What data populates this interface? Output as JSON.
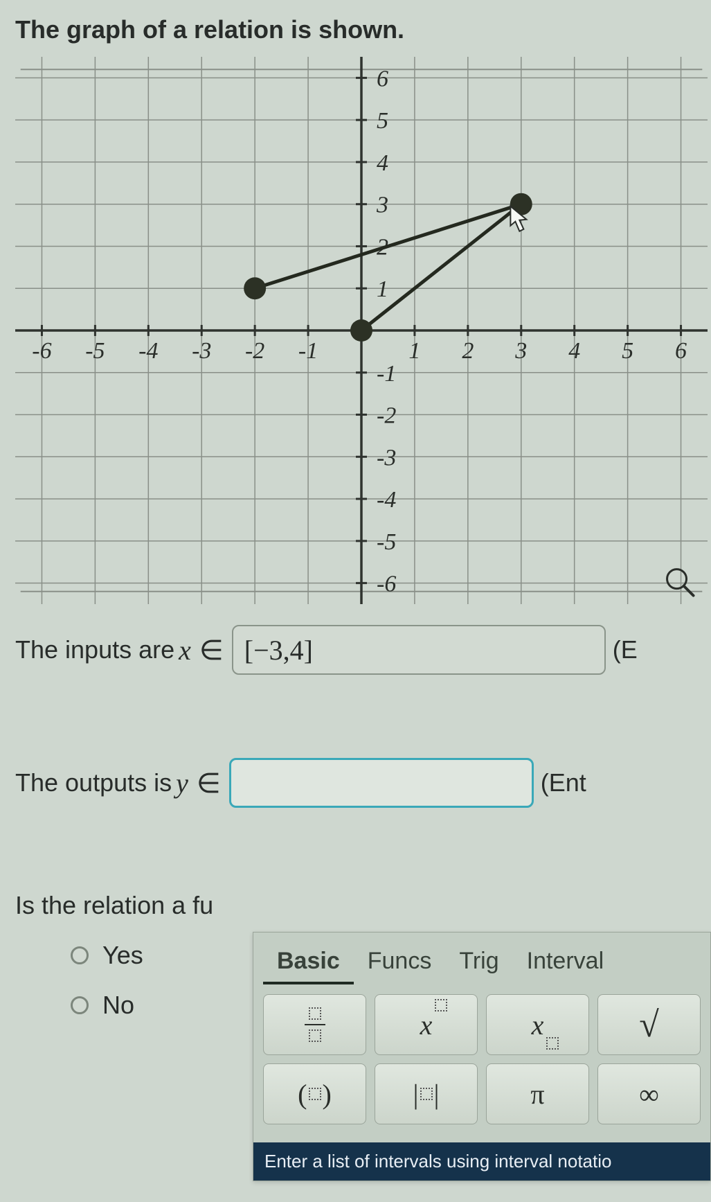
{
  "title": "The graph of a relation is shown.",
  "graph": {
    "type": "line-scatter",
    "xlim": [
      -6.5,
      6.5
    ],
    "ylim": [
      -6.5,
      6.5
    ],
    "xtick_labels": [
      "-6",
      "-5",
      "-4",
      "-3",
      "-2",
      "-1",
      "1",
      "2",
      "3",
      "4",
      "5",
      "6"
    ],
    "ytick_labels": [
      "6",
      "5",
      "4",
      "3",
      "2",
      "1",
      "-1",
      "-2",
      "-3",
      "-4",
      "-5",
      "-6"
    ],
    "tick_fontsize": 34,
    "tick_font": "italic serif",
    "grid_color": "#898f88",
    "axis_color": "#2f332f",
    "background_color": "#ced7cf",
    "line_color": "#24291f",
    "line_width": 5,
    "point_radius": 16,
    "point_fill": "#2c3125",
    "points": [
      {
        "x": -2,
        "y": 1
      },
      {
        "x": 0,
        "y": 0
      },
      {
        "x": 3,
        "y": 3
      }
    ],
    "segments": [
      {
        "from": [
          -2,
          1
        ],
        "to": [
          3,
          3
        ]
      },
      {
        "from": [
          0,
          0
        ],
        "to": [
          3,
          3
        ]
      }
    ],
    "cursor_at": [
      2.8,
      2.95
    ],
    "magnifier_at": [
      6,
      -6
    ]
  },
  "q1": {
    "prompt_pre": "The inputs are ",
    "var": "x",
    "elem": "∈",
    "value": "[−3,4]",
    "trailing": "(E"
  },
  "q2": {
    "prompt_pre": "The outputs is ",
    "var": "y",
    "elem": "∈",
    "value": "",
    "trailing": "(Ent"
  },
  "q3": {
    "prompt": "Is the relation a fu",
    "options": [
      "Yes",
      "No"
    ]
  },
  "keypad": {
    "tabs": [
      "Basic",
      "Funcs",
      "Trig",
      "Interval"
    ],
    "active_tab": 0,
    "row1": {
      "frac": "frac",
      "pow": "x",
      "sub": "x",
      "sqrt": "√"
    },
    "row2": {
      "paren_l": "(",
      "paren_r": ")",
      "abs_l": "|",
      "abs_r": "|",
      "pi": "π",
      "inf": "∞"
    },
    "footer": "Enter a list of intervals using interval notatio"
  }
}
